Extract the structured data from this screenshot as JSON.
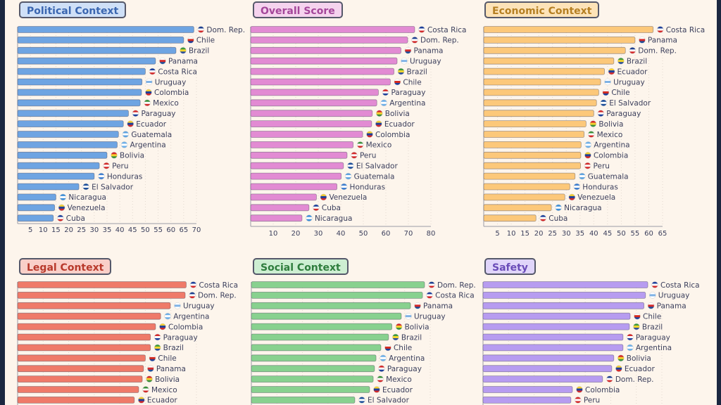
{
  "chart_data": [
    {
      "type": "bar",
      "title": "Political Context",
      "color": "#6ea4e2",
      "title_bg": "#cfe0f7",
      "title_color": "#3a66b0",
      "xlim": [
        0,
        70
      ],
      "xticks": [
        5,
        10,
        15,
        20,
        25,
        30,
        35,
        40,
        45,
        50,
        55,
        60,
        65,
        70
      ],
      "categories": [
        "Dom. Rep.",
        "Chile",
        "Brazil",
        "Panama",
        "Costa Rica",
        "Uruguay",
        "Colombia",
        "Mexico",
        "Paraguay",
        "Ecuador",
        "Guatemala",
        "Argentina",
        "Bolivia",
        "Peru",
        "Honduras",
        "El Salvador",
        "Nicaragua",
        "Venezuela",
        "Cuba"
      ],
      "values": [
        69,
        65,
        62,
        54,
        50,
        48.7,
        48.5,
        48,
        43.4,
        41.4,
        39.5,
        39,
        35,
        32,
        30,
        24,
        15,
        14.5,
        14
      ]
    },
    {
      "type": "bar",
      "title": "Overall Score",
      "color": "#e28bd3",
      "title_bg": "#f5d3ee",
      "title_color": "#a4479a",
      "xlim": [
        0,
        80
      ],
      "xticks": [
        10,
        20,
        30,
        40,
        50,
        60,
        70,
        80
      ],
      "categories": [
        "Costa Rica",
        "Dom. Rep.",
        "Panama",
        "Uruguay",
        "Brazil",
        "Chile",
        "Paraguay",
        "Argentina",
        "Bolivia",
        "Ecuador",
        "Colombia",
        "Mexico",
        "Peru",
        "El Salvador",
        "Guatemala",
        "Honduras",
        "Venezuela",
        "Cuba",
        "Nicaragua"
      ],
      "values": [
        72.8,
        69.7,
        66.7,
        65,
        63.6,
        62,
        56.7,
        56,
        54,
        53.7,
        49.7,
        45.5,
        42.8,
        41.2,
        40.2,
        38.3,
        29.2,
        25.9,
        22.8
      ]
    },
    {
      "type": "bar",
      "title": "Economic Context",
      "color": "#fcc87a",
      "title_bg": "#fde3b8",
      "title_color": "#b57f22",
      "xlim": [
        0,
        65
      ],
      "xticks": [
        5,
        10,
        15,
        20,
        25,
        30,
        35,
        40,
        45,
        50,
        55,
        60,
        65
      ],
      "categories": [
        "Costa Rica",
        "Panama",
        "Dom. Rep.",
        "Brazil",
        "Ecuador",
        "Uruguay",
        "Chile",
        "El Salvador",
        "Paraguay",
        "Bolivia",
        "Mexico",
        "Argentina",
        "Colombia",
        "Peru",
        "Guatemala",
        "Honduras",
        "Venezuela",
        "Nicaragua",
        "Cuba"
      ],
      "values": [
        61.6,
        55,
        51.5,
        47.3,
        43.9,
        42.5,
        41.8,
        41,
        40,
        37.2,
        36.5,
        35.4,
        35.3,
        35.2,
        33.2,
        31.3,
        29.5,
        24.6,
        19
      ]
    },
    {
      "type": "bar",
      "title": "Legal Context",
      "color": "#ef7a69",
      "title_bg": "#f9cfc8",
      "title_color": "#b8392b",
      "categories": [
        "Costa Rica",
        "Dom. Rep.",
        "Uruguay",
        "Argentina",
        "Colombia",
        "Paraguay",
        "Brazil",
        "Chile",
        "Panama",
        "Bolivia",
        "Mexico",
        "Ecuador"
      ],
      "values": [
        66,
        65.6,
        59.8,
        56,
        54,
        52,
        52,
        50,
        49.3,
        48.8,
        47.4,
        45.7
      ]
    },
    {
      "type": "bar",
      "title": "Social Context",
      "color": "#88d18f",
      "title_bg": "#cdeed2",
      "title_color": "#2f7d3d",
      "categories": [
        "Dom. Rep.",
        "Costa Rica",
        "Panama",
        "Uruguay",
        "Bolivia",
        "Brazil",
        "Chile",
        "Argentina",
        "Paraguay",
        "Mexico",
        "Ecuador",
        "El Salvador"
      ],
      "values": [
        67.8,
        67,
        62.3,
        58.7,
        55,
        53.7,
        50.7,
        48.8,
        48.2,
        47.7,
        46.3,
        40.5
      ]
    },
    {
      "type": "bar",
      "title": "Safety",
      "color": "#b79cf0",
      "title_bg": "#e0d5fa",
      "title_color": "#6a4bb8",
      "categories": [
        "Costa Rica",
        "Uruguay",
        "Panama",
        "Chile",
        "Brazil",
        "Paraguay",
        "Argentina",
        "Bolivia",
        "Ecuador",
        "Dom. Rep.",
        "Colombia",
        "Peru"
      ],
      "values": [
        64.5,
        63.6,
        63,
        57.6,
        57.3,
        54.8,
        54.8,
        51.2,
        50.4,
        46.8,
        35,
        34.4
      ]
    }
  ]
}
